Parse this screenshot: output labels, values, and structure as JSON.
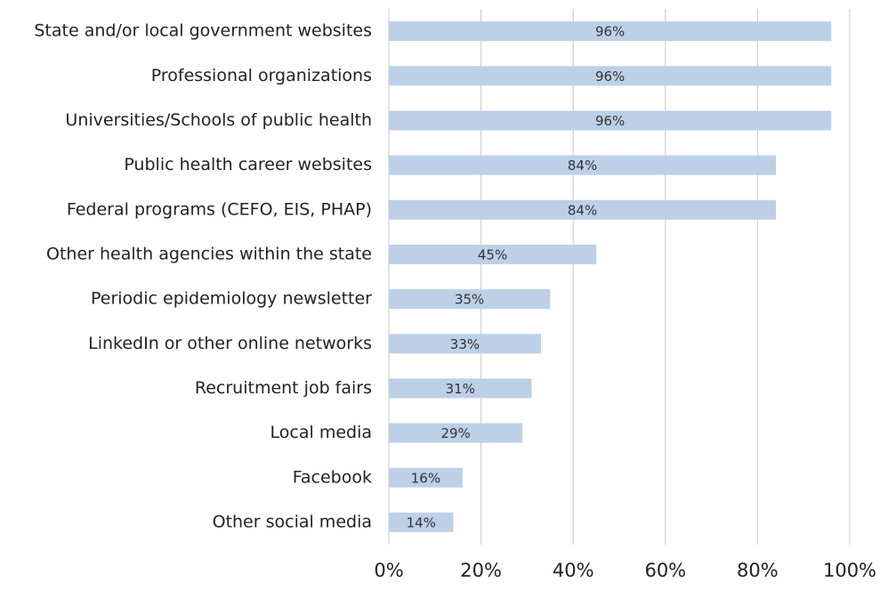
{
  "chart_data": {
    "type": "hbar",
    "categories": [
      "State and/or local government websites",
      "Professional organizations",
      "Universities/Schools of public health",
      "Public health career websites",
      "Federal programs (CEFO, EIS, PHAP)",
      "Other health agencies within the state",
      "Periodic epidemiology newsletter",
      "LinkedIn or other online networks",
      "Recruitment job fairs",
      "Local media",
      "Facebook",
      "Other social media"
    ],
    "values": [
      96,
      96,
      96,
      84,
      84,
      45,
      35,
      33,
      31,
      29,
      16,
      14
    ],
    "value_labels": [
      "96%",
      "96%",
      "96%",
      "84%",
      "84%",
      "45%",
      "35%",
      "33%",
      "31%",
      "29%",
      "16%",
      "14%"
    ],
    "color": "#bdd0e8",
    "xlim": [
      0,
      100
    ],
    "xticks": [
      {
        "value": 0,
        "label": "0%"
      },
      {
        "value": 20,
        "label": "20%"
      },
      {
        "value": 40,
        "label": "40%"
      },
      {
        "value": 60,
        "label": "60%"
      },
      {
        "value": 80,
        "label": "80%"
      },
      {
        "value": 100,
        "label": "100%"
      }
    ],
    "grid": true
  }
}
